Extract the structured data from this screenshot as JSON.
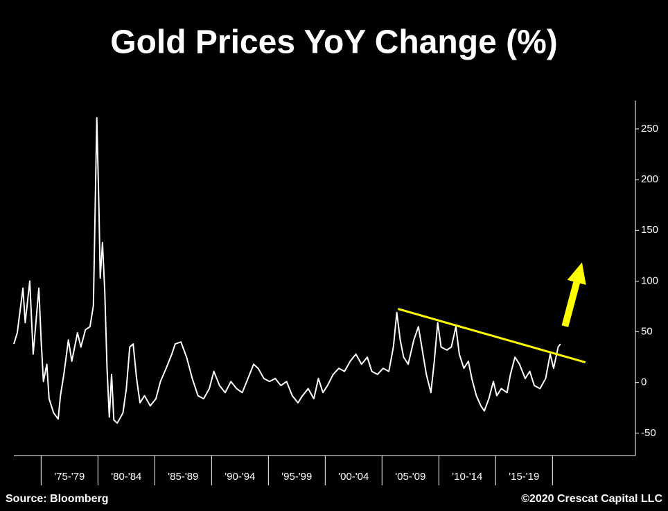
{
  "chart_data": {
    "type": "line",
    "title": "Gold Prices YoY Change (%)",
    "source": "Source: Bloomberg",
    "copyright": "©2020 Crescat Capital LLC",
    "x": [
      1972.6,
      1972.9,
      1973.4,
      1973.6,
      1974.0,
      1974.3,
      1974.8,
      1975.0,
      1975.2,
      1975.5,
      1975.7,
      1976.1,
      1976.5,
      1976.7,
      1977.0,
      1977.4,
      1977.7,
      1978.2,
      1978.5,
      1978.9,
      1979.3,
      1979.6,
      1979.9,
      1980.1,
      1980.2,
      1980.4,
      1980.6,
      1980.8,
      1981.0,
      1981.2,
      1981.4,
      1981.7,
      1982.2,
      1982.5,
      1982.8,
      1983.1,
      1983.4,
      1983.7,
      1984.1,
      1984.6,
      1985.1,
      1985.5,
      1986.0,
      1986.5,
      1986.8,
      1987.3,
      1987.8,
      1988.3,
      1988.8,
      1989.3,
      1989.8,
      1990.2,
      1990.7,
      1991.2,
      1991.7,
      1992.2,
      1992.7,
      1993.2,
      1993.7,
      1994.1,
      1994.6,
      1995.1,
      1995.6,
      1996.1,
      1996.6,
      1997.1,
      1997.6,
      1998.0,
      1998.5,
      1999.0,
      1999.4,
      1999.8,
      2000.2,
      2000.7,
      2001.2,
      2001.7,
      2002.2,
      2002.7,
      2003.2,
      2003.7,
      2004.1,
      2004.6,
      2005.1,
      2005.6,
      2006.0,
      2006.3,
      2006.6,
      2006.9,
      2007.3,
      2007.8,
      2008.2,
      2008.5,
      2008.9,
      2009.3,
      2009.6,
      2009.9,
      2010.2,
      2010.7,
      2011.1,
      2011.5,
      2011.8,
      2012.2,
      2012.6,
      2012.9,
      2013.3,
      2013.7,
      2014.0,
      2014.4,
      2014.8,
      2015.1,
      2015.5,
      2016.0,
      2016.3,
      2016.7,
      2017.1,
      2017.6,
      2018.0,
      2018.4,
      2018.9,
      2019.4,
      2019.8,
      2020.1,
      2020.5,
      2020.7
    ],
    "series": [
      {
        "color": "#ffffff",
        "values": [
          38,
          49,
          93,
          59,
          100,
          28,
          93,
          42,
          1,
          18,
          -16,
          -30,
          -36,
          -13,
          8,
          42,
          21,
          49,
          35,
          52,
          55,
          76,
          261,
          165,
          103,
          138,
          90,
          14,
          -34,
          8,
          -37,
          -40,
          -30,
          -6,
          35,
          38,
          4,
          -20,
          -13,
          -23,
          -16,
          1,
          14,
          28,
          38,
          40,
          25,
          4,
          -13,
          -16,
          -6,
          11,
          -3,
          -10,
          1,
          -6,
          -10,
          4,
          18,
          14,
          4,
          1,
          4,
          -3,
          1,
          -13,
          -20,
          -13,
          -6,
          -16,
          4,
          -10,
          -3,
          8,
          14,
          11,
          21,
          28,
          18,
          25,
          11,
          8,
          14,
          11,
          35,
          69,
          42,
          25,
          18,
          42,
          55,
          35,
          8,
          -10,
          21,
          59,
          35,
          32,
          35,
          55,
          28,
          14,
          21,
          4,
          -13,
          -23,
          -28,
          -16,
          1,
          -13,
          -6,
          -10,
          8,
          25,
          18,
          4,
          11,
          -3,
          -6,
          4,
          28,
          14,
          35,
          38
        ]
      }
    ],
    "xlim": [
      1972.6,
      2027.3
    ],
    "xticks": [
      1975,
      1980,
      1985,
      1990,
      1995,
      2000,
      2005,
      2010,
      2015,
      2020
    ],
    "period_labels": [
      "'75-'79",
      "'80-'84",
      "'85-'89",
      "'90-'94",
      "'95-'99",
      "'00-'04",
      "'05-'09",
      "'10-'14",
      "'15-'19"
    ],
    "ylim": [
      -72,
      278
    ],
    "yticks": [
      -50,
      0,
      50,
      100,
      150,
      200,
      250
    ],
    "trendline": {
      "x": [
        2006.4,
        2022.9
      ],
      "values": [
        72.6,
        19.9
      ],
      "color": "#ffff00"
    },
    "arrow": {
      "x": [
        2021.1,
        2022.6
      ],
      "values": [
        55.5,
        118.5
      ],
      "color": "#ffff00"
    }
  }
}
